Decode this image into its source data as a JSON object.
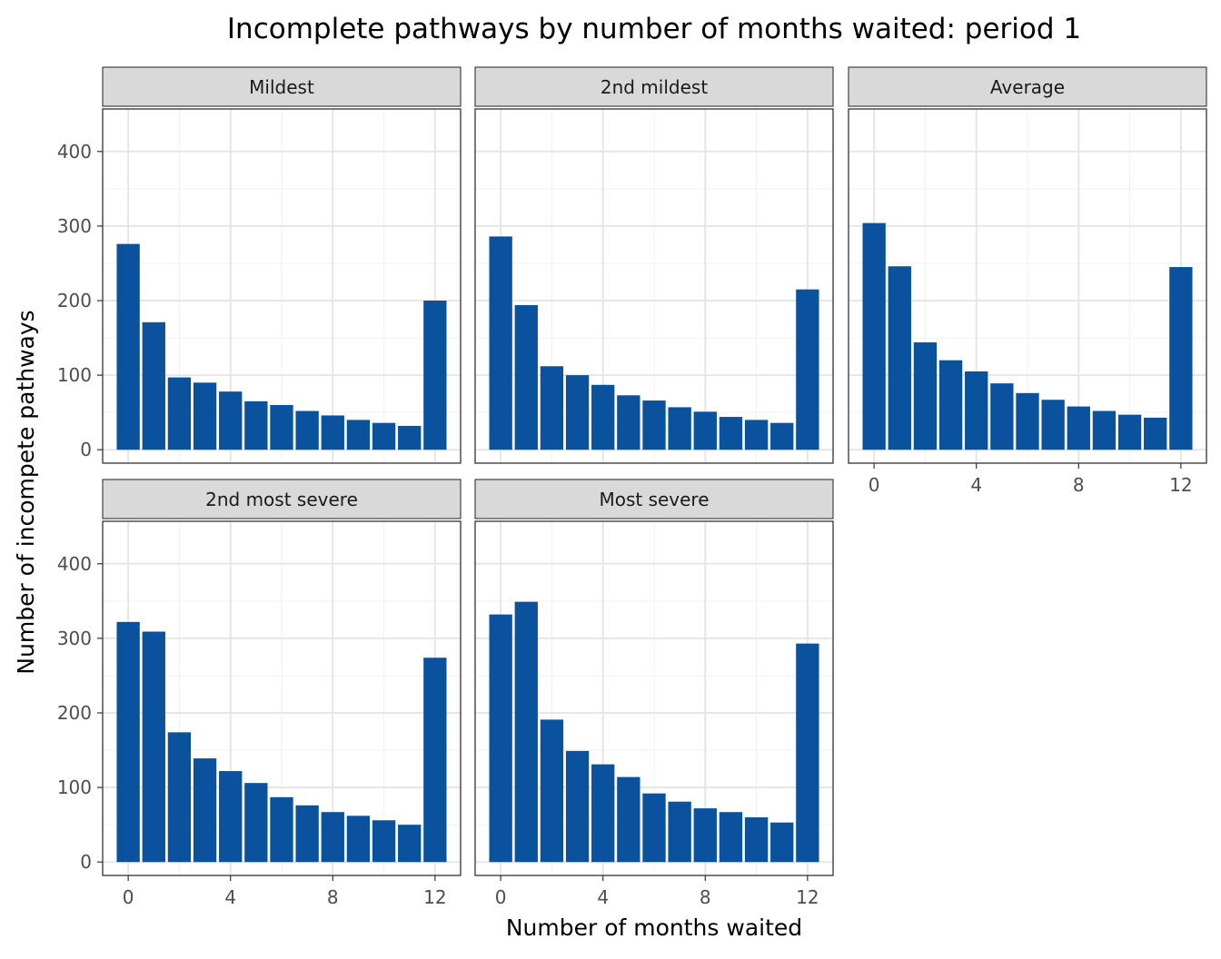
{
  "chart_data": {
    "type": "bar",
    "title": "Incomplete pathways by number of months waited: period 1",
    "xlabel": "Number of months waited",
    "ylabel": "Number of incompete pathways",
    "x": [
      0,
      1,
      2,
      3,
      4,
      5,
      6,
      7,
      8,
      9,
      10,
      11,
      12
    ],
    "xticks": [
      0,
      4,
      8,
      12
    ],
    "yticks": [
      0,
      100,
      200,
      300,
      400
    ],
    "xlim": [
      -1,
      13
    ],
    "ylim": [
      -18,
      457
    ],
    "grid": true,
    "bar_color": "#0b529e",
    "strip_fill": "#d9d9d9",
    "panels": [
      {
        "name": "Mildest",
        "values": [
          276,
          171,
          97,
          90,
          78,
          65,
          60,
          52,
          46,
          40,
          36,
          32,
          200
        ]
      },
      {
        "name": "2nd mildest",
        "values": [
          286,
          194,
          112,
          100,
          87,
          73,
          66,
          57,
          51,
          44,
          40,
          36,
          215
        ]
      },
      {
        "name": "Average",
        "values": [
          304,
          246,
          144,
          120,
          105,
          89,
          76,
          67,
          58,
          52,
          47,
          43,
          245
        ]
      },
      {
        "name": "2nd most severe",
        "values": [
          322,
          309,
          174,
          139,
          122,
          106,
          87,
          76,
          67,
          62,
          56,
          50,
          274
        ]
      },
      {
        "name": "Most severe",
        "values": [
          332,
          349,
          191,
          149,
          131,
          114,
          92,
          81,
          72,
          67,
          60,
          53,
          293
        ]
      }
    ]
  }
}
